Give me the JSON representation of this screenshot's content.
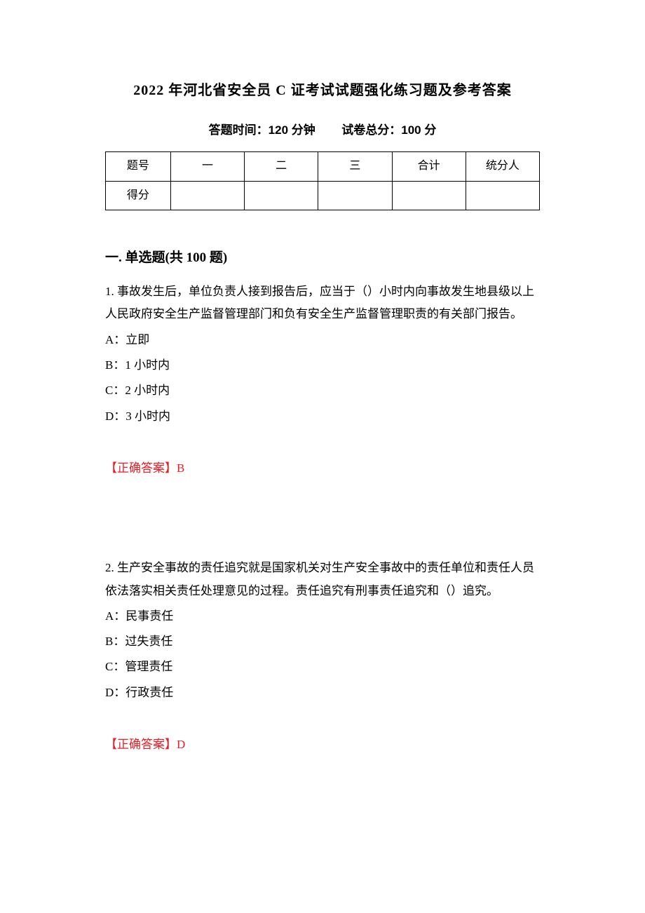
{
  "main_title": "2022 年河北省安全员 C 证考试试题强化练习题及参考答案",
  "sub_title_left": "答题时间：120 分钟",
  "sub_title_right": "试卷总分：100 分",
  "score_table": {
    "header": [
      "题号",
      "一",
      "二",
      "三",
      "合计",
      "统分人"
    ],
    "row2_label": "得分"
  },
  "section1_title": "一. 单选题(共 100 题)",
  "questions": [
    {
      "text": "1. 事故发生后，单位负责人接到报告后，应当于（）小时内向事故发生地县级以上人民政府安全生产监督管理部门和负有安全生产监督管理职责的有关部门报告。",
      "options": [
        "A：立即",
        "B：1 小时内",
        "C：2 小时内",
        "D：3 小时内"
      ],
      "answer_label": "【正确答案】",
      "answer_value": "B"
    },
    {
      "text": "2. 生产安全事故的责任追究就是国家机关对生产安全事故中的责任单位和责任人员依法落实相关责任处理意见的过程。责任追究有刑事责任追究和（）追究。",
      "options": [
        "A：民事责任",
        "B：过失责任",
        "C：管理责任",
        "D：行政责任"
      ],
      "answer_label": "【正确答案】",
      "answer_value": "D"
    }
  ],
  "colors": {
    "text": "#000000",
    "answer": "#ed1c24",
    "background": "#ffffff",
    "border": "#000000"
  },
  "typography": {
    "title_fontsize": 20,
    "subtitle_fontsize": 17,
    "section_fontsize": 19,
    "body_fontsize": 17,
    "line_height": 1.9
  }
}
